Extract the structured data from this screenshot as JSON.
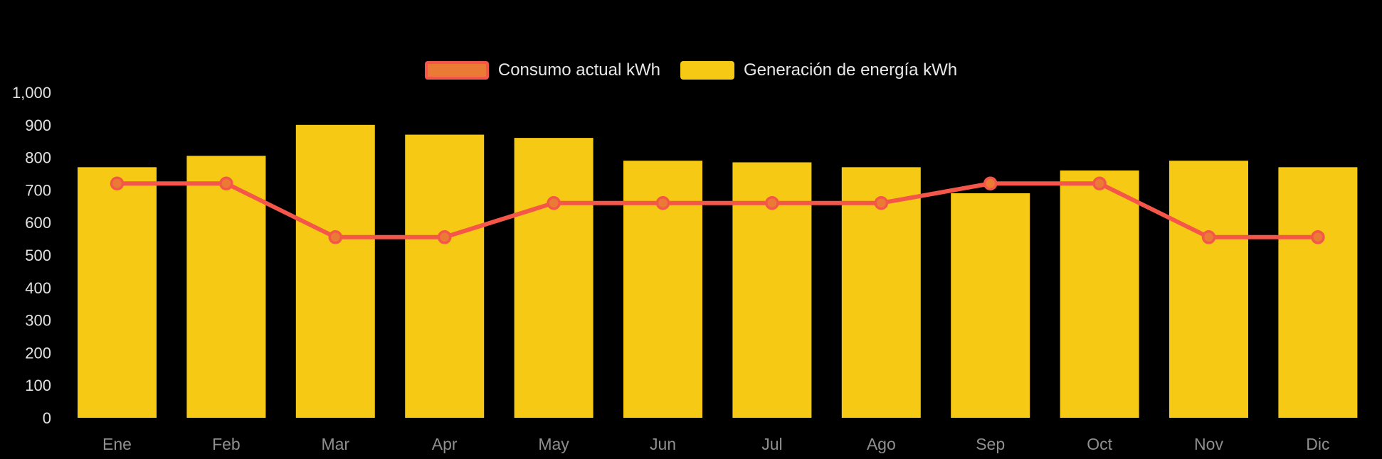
{
  "chart_data": {
    "type": "bar",
    "subtype": "bar-with-line-overlay",
    "title": "",
    "xlabel": "",
    "ylabel": "",
    "categories": [
      "Ene",
      "Feb",
      "Mar",
      "Apr",
      "May",
      "Jun",
      "Jul",
      "Ago",
      "Sep",
      "Oct",
      "Nov",
      "Dic"
    ],
    "series": [
      {
        "name": "Consumo actual kWh",
        "type": "line",
        "values": [
          720,
          720,
          555,
          555,
          660,
          660,
          660,
          660,
          720,
          720,
          555,
          555
        ]
      },
      {
        "name": "Generación de energía kWh",
        "type": "bar",
        "values": [
          770,
          805,
          900,
          870,
          860,
          790,
          785,
          770,
          690,
          760,
          790,
          770
        ]
      }
    ],
    "ylim": [
      0,
      1000
    ],
    "ytick_step": 100,
    "ytick_labels": [
      "0",
      "100",
      "200",
      "300",
      "400",
      "500",
      "600",
      "700",
      "800",
      "900",
      "1,000"
    ],
    "grid": "off",
    "legend_position": "top-center",
    "colors": {
      "background": "#000000",
      "bar": "#F6C914",
      "line": "#F4574A",
      "marker_fill": "#EB7B34",
      "ytick_text": "#E2E2E2",
      "month_text": "#8F8F8F",
      "legend_text": "#E8E8E8"
    }
  }
}
